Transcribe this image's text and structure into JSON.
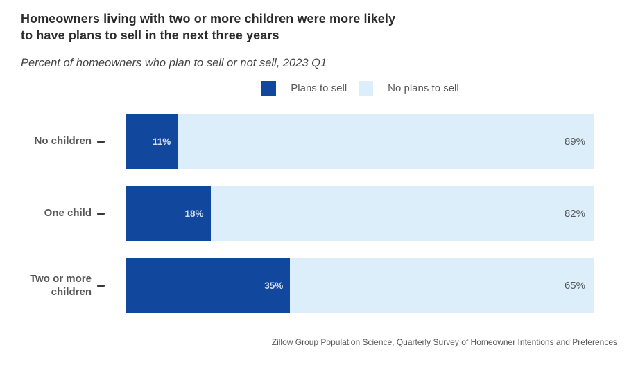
{
  "header": {
    "title": "Homeowners living with two or more children were more likely\nto have plans to sell in the next three years",
    "subtitle": "Percent of homeowners who plan to sell or not sell, 2023 Q1"
  },
  "chart_data": {
    "type": "bar",
    "orientation": "horizontal",
    "stacked": true,
    "title": "Homeowners living with two or more children were more likely to have plans to sell in the next three years",
    "subtitle": "Percent of homeowners who plan to sell or not sell, 2023 Q1",
    "categories": [
      "No children",
      "One child",
      "Two or more\nchildren"
    ],
    "series": [
      {
        "name": "Plans to sell",
        "values": [
          11,
          18,
          35
        ],
        "color": "#12479E"
      },
      {
        "name": "No plans to sell",
        "values": [
          89,
          82,
          65
        ],
        "color": "#DDEEFB"
      }
    ],
    "value_suffix": "%",
    "xlim": [
      0,
      100
    ],
    "grid": false,
    "legend_position": "top"
  },
  "colors": {
    "plans_to_sell": "#12479E",
    "no_plans_to_sell": "#DDEEFB",
    "value_on_dark": "rgba(255,255,255,0.82)",
    "value_on_light": "#55585e",
    "label_gray": "#58585a"
  },
  "source": "Zillow Group Population Science, Quarterly Survey of Homeowner Intentions and Preferences"
}
